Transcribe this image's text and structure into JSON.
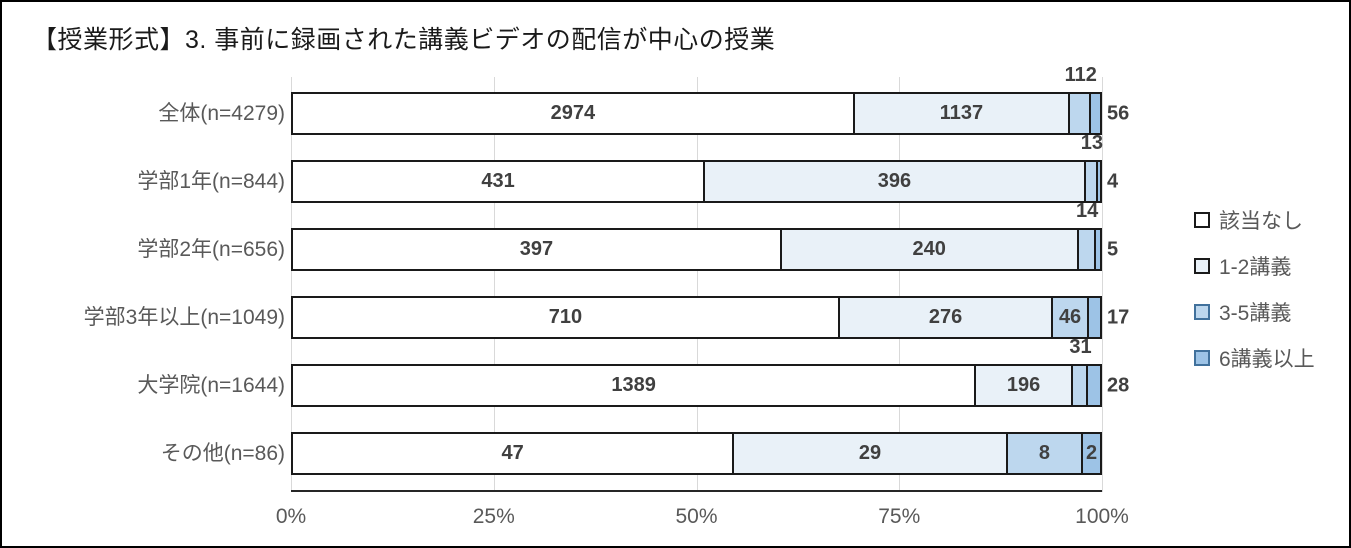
{
  "chart_data": {
    "type": "bar",
    "subtype": "horizontal-100pct-stacked",
    "title": "【授業形式】3. 事前に録画された講義ビデオの配信が中心の授業",
    "categories": [
      "全体(n=4279)",
      "学部1年(n=844)",
      "学部2年(n=656)",
      "学部3年以上(n=1049)",
      "大学院(n=1644)",
      "その他(n=86)"
    ],
    "totals": [
      4279,
      844,
      656,
      1049,
      1644,
      86
    ],
    "series": [
      {
        "name": "該当なし",
        "color": "#ffffff",
        "legend_border": "#1a1a1a",
        "values": [
          2974,
          431,
          397,
          710,
          1389,
          47
        ],
        "label_placement": [
          "inside",
          "inside",
          "inside",
          "inside",
          "inside",
          "inside"
        ]
      },
      {
        "name": "1-2講義",
        "color": "#e9f1f8",
        "legend_border": "#1a1a1a",
        "values": [
          1137,
          396,
          240,
          276,
          196,
          29
        ],
        "label_placement": [
          "inside",
          "inside",
          "inside",
          "inside",
          "inside",
          "inside"
        ]
      },
      {
        "name": "3-5講義",
        "color": "#bdd7ee",
        "legend_border": "#41719c",
        "values": [
          112,
          13,
          14,
          46,
          31,
          8
        ],
        "label_placement": [
          "above",
          "above",
          "above",
          "inside",
          "above",
          "inside"
        ]
      },
      {
        "name": "6講義以上",
        "color": "#9dc3e6",
        "legend_border": "#41719c",
        "values": [
          56,
          4,
          5,
          17,
          28,
          2
        ],
        "label_placement": [
          "right",
          "right",
          "right",
          "right",
          "right",
          "inside"
        ]
      }
    ],
    "x_ticks": [
      "0%",
      "25%",
      "50%",
      "75%",
      "100%"
    ],
    "xlim": [
      0,
      100
    ],
    "grid": true,
    "legend_position": "right"
  }
}
